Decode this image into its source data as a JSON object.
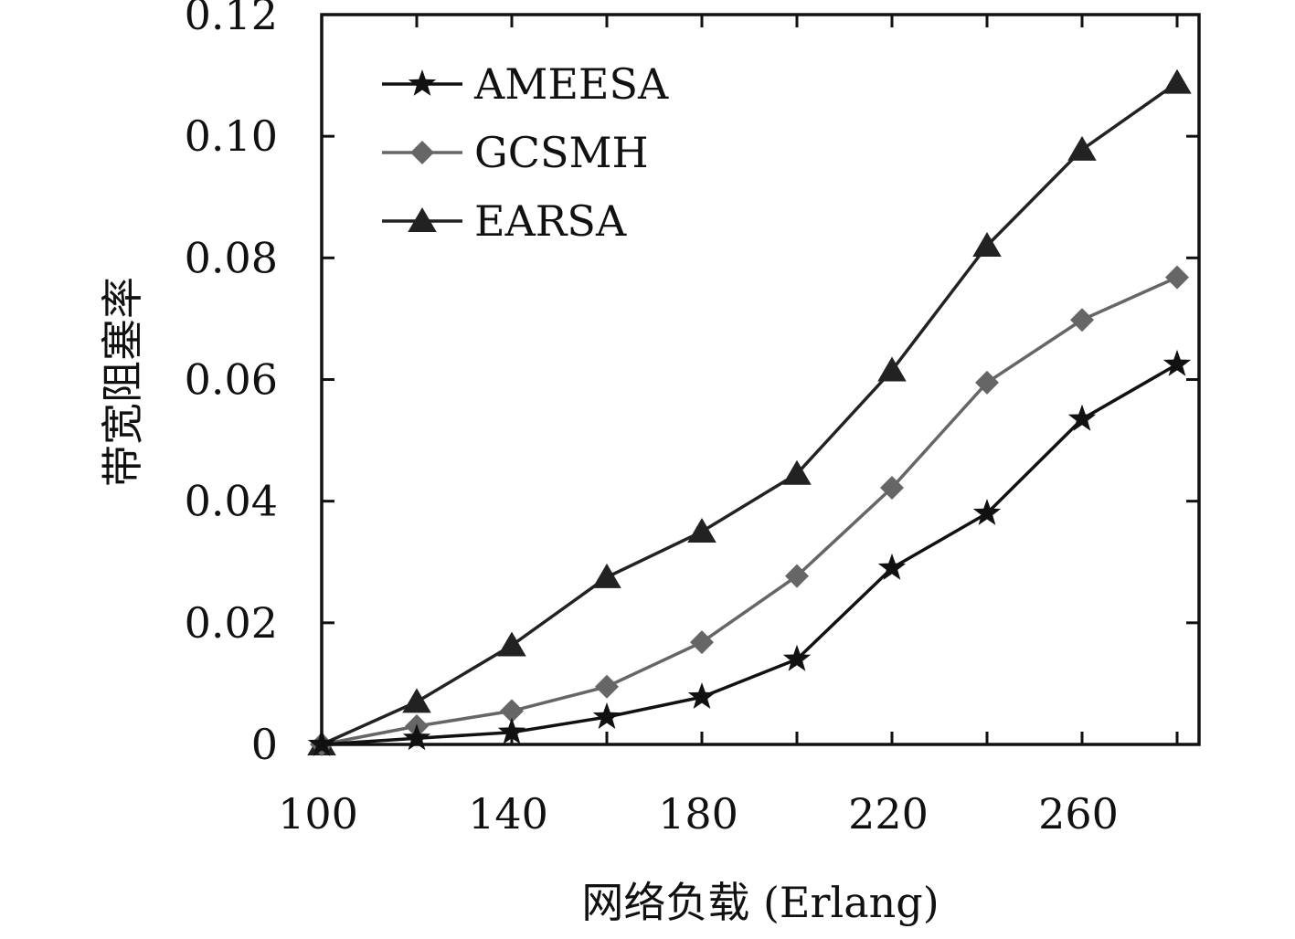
{
  "chart_data": {
    "type": "line",
    "xlabel": "网络负载 (Erlang)",
    "ylabel": "带宽阻塞率",
    "xlim": [
      100,
      280
    ],
    "ylim": [
      0,
      0.12
    ],
    "x_ticks": [
      "100",
      "140",
      "180",
      "220",
      "260"
    ],
    "x_tick_values": [
      100,
      140,
      180,
      220,
      260
    ],
    "y_ticks": [
      "0",
      "0.02",
      "0.04",
      "0.06",
      "0.08",
      "0.10",
      "0.12"
    ],
    "y_tick_values": [
      0,
      0.02,
      0.04,
      0.06,
      0.08,
      0.1,
      0.12
    ],
    "grid": false,
    "legend_position": "top-left",
    "x": [
      100,
      120,
      140,
      160,
      180,
      200,
      220,
      240,
      260,
      280
    ],
    "series": [
      {
        "name": "AMEESA",
        "marker": "star",
        "color": "#111111",
        "values": [
          0,
          0.001,
          0.002,
          0.0045,
          0.0078,
          0.014,
          0.029,
          0.038,
          0.0535,
          0.0625
        ]
      },
      {
        "name": "GCSMH",
        "marker": "diamond",
        "color": "#666666",
        "values": [
          0,
          0.003,
          0.0055,
          0.0095,
          0.0168,
          0.0277,
          0.0422,
          0.0595,
          0.0698,
          0.0768
        ]
      },
      {
        "name": "EARSA",
        "marker": "triangle",
        "color": "#222222",
        "values": [
          0,
          0.007,
          0.0163,
          0.0275,
          0.035,
          0.0445,
          0.0615,
          0.082,
          0.0978,
          0.1088
        ]
      }
    ]
  }
}
